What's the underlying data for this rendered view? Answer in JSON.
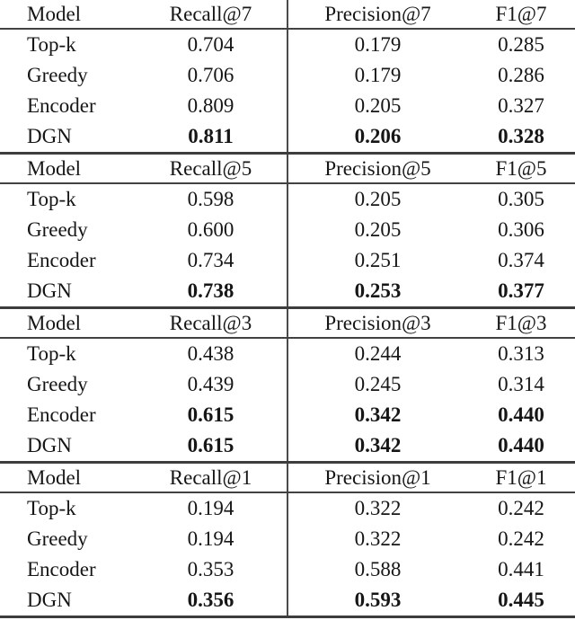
{
  "colors": {
    "background": "#ffffff",
    "text": "#161616",
    "rule": "#3d3d3d"
  },
  "table_blocks": [
    {
      "headers": [
        "Model",
        "Recall@7",
        "Precision@7",
        "F1@7"
      ],
      "rows": [
        {
          "model": "Top-k",
          "values": [
            "0.704",
            "0.179",
            "0.285"
          ],
          "bold": false
        },
        {
          "model": "Greedy",
          "values": [
            "0.706",
            "0.179",
            "0.286"
          ],
          "bold": false
        },
        {
          "model": "Encoder",
          "values": [
            "0.809",
            "0.205",
            "0.327"
          ],
          "bold": false
        },
        {
          "model": "DGN",
          "values": [
            "0.811",
            "0.206",
            "0.328"
          ],
          "bold": true
        }
      ]
    },
    {
      "headers": [
        "Model",
        "Recall@5",
        "Precision@5",
        "F1@5"
      ],
      "rows": [
        {
          "model": "Top-k",
          "values": [
            "0.598",
            "0.205",
            "0.305"
          ],
          "bold": false
        },
        {
          "model": "Greedy",
          "values": [
            "0.600",
            "0.205",
            "0.306"
          ],
          "bold": false
        },
        {
          "model": "Encoder",
          "values": [
            "0.734",
            "0.251",
            "0.374"
          ],
          "bold": false
        },
        {
          "model": "DGN",
          "values": [
            "0.738",
            "0.253",
            "0.377"
          ],
          "bold": true
        }
      ]
    },
    {
      "headers": [
        "Model",
        "Recall@3",
        "Precision@3",
        "F1@3"
      ],
      "rows": [
        {
          "model": "Top-k",
          "values": [
            "0.438",
            "0.244",
            "0.313"
          ],
          "bold": false
        },
        {
          "model": "Greedy",
          "values": [
            "0.439",
            "0.245",
            "0.314"
          ],
          "bold": false
        },
        {
          "model": "Encoder",
          "values": [
            "0.615",
            "0.342",
            "0.440"
          ],
          "bold": true
        },
        {
          "model": "DGN",
          "values": [
            "0.615",
            "0.342",
            "0.440"
          ],
          "bold": true
        }
      ]
    },
    {
      "headers": [
        "Model",
        "Recall@1",
        "Precision@1",
        "F1@1"
      ],
      "rows": [
        {
          "model": "Top-k",
          "values": [
            "0.194",
            "0.322",
            "0.242"
          ],
          "bold": false
        },
        {
          "model": "Greedy",
          "values": [
            "0.194",
            "0.322",
            "0.242"
          ],
          "bold": false
        },
        {
          "model": "Encoder",
          "values": [
            "0.353",
            "0.588",
            "0.441"
          ],
          "bold": false
        },
        {
          "model": "DGN",
          "values": [
            "0.356",
            "0.593",
            "0.445"
          ],
          "bold": true
        }
      ]
    }
  ]
}
